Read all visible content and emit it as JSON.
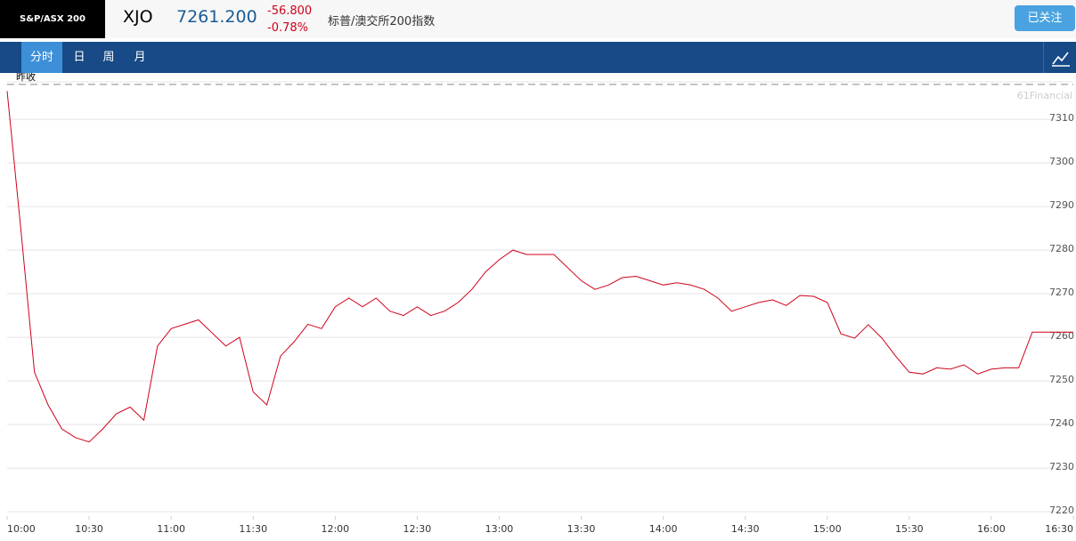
{
  "header": {
    "logo": "S&P/ASX 200",
    "symbol": "XJO",
    "price": "7261.200",
    "change": "-56.800",
    "change_pct": "-0.78%",
    "name": "标普/澳交所200指数",
    "follow_button": "已关注"
  },
  "tabs": [
    "分时",
    "日",
    "周",
    "月"
  ],
  "chart_data": {
    "type": "line",
    "watermark": "61Financial",
    "color": "#d0021b",
    "prev_close": {
      "label": "昨收",
      "value": 7318
    },
    "x": [
      "10:00",
      "10:05",
      "10:10",
      "10:15",
      "10:20",
      "10:25",
      "10:30",
      "10:35",
      "10:40",
      "10:45",
      "10:50",
      "10:55",
      "11:00",
      "11:05",
      "11:10",
      "11:15",
      "11:20",
      "11:25",
      "11:30",
      "11:35",
      "11:40",
      "11:45",
      "11:50",
      "11:55",
      "12:00",
      "12:05",
      "12:10",
      "12:15",
      "12:20",
      "12:25",
      "12:30",
      "12:35",
      "12:40",
      "12:45",
      "12:50",
      "12:55",
      "13:00",
      "13:05",
      "13:10",
      "13:15",
      "13:20",
      "13:25",
      "13:30",
      "13:35",
      "13:40",
      "13:45",
      "13:50",
      "13:55",
      "14:00",
      "14:05",
      "14:10",
      "14:15",
      "14:20",
      "14:25",
      "14:30",
      "14:35",
      "14:40",
      "14:45",
      "14:50",
      "14:55",
      "15:00",
      "15:05",
      "15:10",
      "15:15",
      "15:20",
      "15:25",
      "15:30",
      "15:35",
      "15:40",
      "15:45",
      "15:50",
      "15:55",
      "16:00",
      "16:05",
      "16:10",
      "16:15",
      "16:20",
      "16:25",
      "16:30"
    ],
    "values": [
      7316.5,
      7285,
      7252,
      7244.5,
      7239,
      7237,
      7236,
      7239,
      7242.5,
      7244,
      7241,
      7258,
      7262,
      7263,
      7264,
      7261,
      7258,
      7260,
      7247.5,
      7244.5,
      7255.7,
      7259,
      7263,
      7262,
      7267,
      7269,
      7267,
      7269,
      7266,
      7265,
      7267,
      7265,
      7266,
      7268,
      7271,
      7275,
      7277.8,
      7280,
      7279,
      7279,
      7279,
      7276,
      7273,
      7271,
      7272,
      7273.7,
      7274,
      7273,
      7272,
      7272.5,
      7272,
      7271,
      7269,
      7266,
      7267,
      7268,
      7268.6,
      7267.3,
      7269.6,
      7269.4,
      7268,
      7260.8,
      7259.8,
      7262.9,
      7259.8,
      7255.7,
      7252,
      7251.6,
      7253,
      7252.7,
      7253.7,
      7251.6,
      7252.7,
      7253,
      7253,
      7261.2,
      7261.2,
      7261.2,
      7261.2
    ],
    "xlim": [
      "10:00",
      "16:30"
    ],
    "xticks": [
      "10:00",
      "10:30",
      "11:00",
      "11:30",
      "12:00",
      "12:30",
      "13:00",
      "13:30",
      "14:00",
      "14:30",
      "15:00",
      "15:30",
      "16:00",
      "16:30"
    ],
    "ylim": [
      7219,
      7319
    ],
    "yticks": [
      7220,
      7230,
      7240,
      7250,
      7260,
      7270,
      7280,
      7290,
      7300,
      7310
    ],
    "grid": true
  }
}
